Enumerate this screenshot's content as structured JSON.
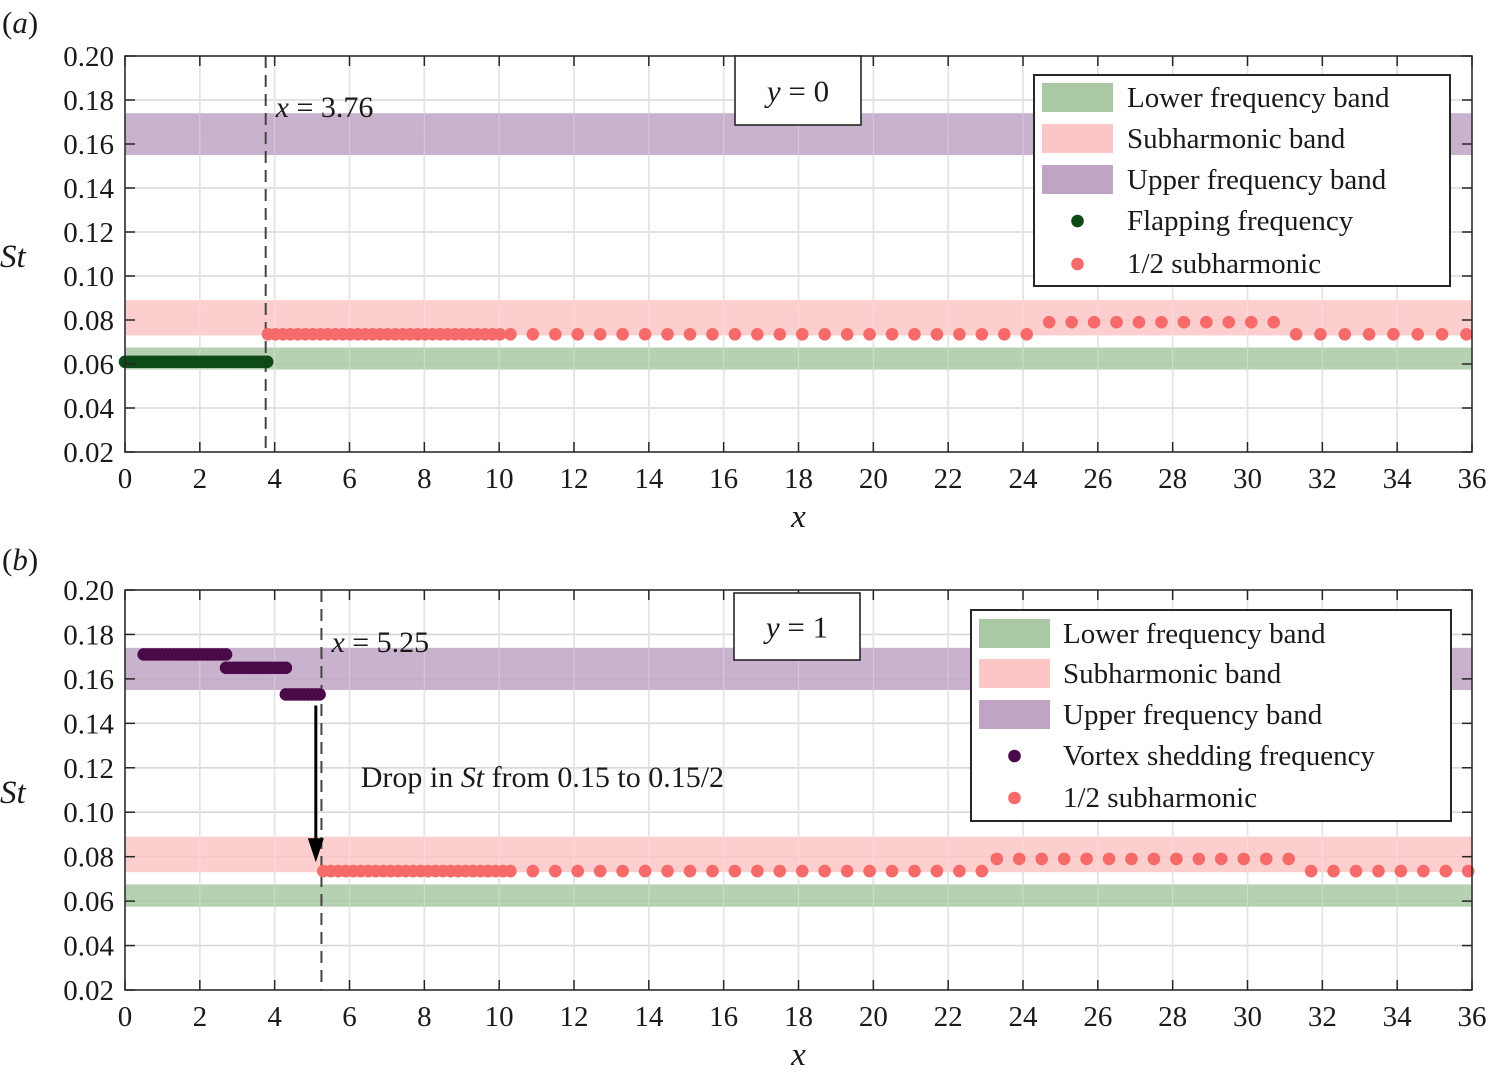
{
  "colors": {
    "lower_band": "#a9c8a4",
    "subharmonic_band": "#fdc6c6",
    "upper_band": "#bfa4c4",
    "flapping_dot": "#0d4a16",
    "subharmonic_dot": "#f76a6a",
    "vortex_dot": "#4a0a4a",
    "grid": "#d8d8d8"
  },
  "chart_data": [
    {
      "type": "scatter",
      "panel_label": "(a)",
      "annotation_box": "y = 0",
      "xlabel": "x",
      "ylabel": "St",
      "xlim": [
        0,
        36
      ],
      "ylim": [
        0.02,
        0.2
      ],
      "xticks": [
        0,
        2,
        4,
        6,
        8,
        10,
        12,
        14,
        16,
        18,
        20,
        22,
        24,
        26,
        28,
        30,
        32,
        34,
        36
      ],
      "yticks": [
        "0.02",
        "0.04",
        "0.06",
        "0.08",
        "0.10",
        "0.12",
        "0.14",
        "0.16",
        "0.18",
        "0.20"
      ],
      "grid": true,
      "legend_position": "top-right",
      "vline": {
        "x": 3.76,
        "label": "x = 3.76"
      },
      "bands": [
        {
          "name": "Lower frequency band",
          "ymin": 0.0575,
          "ymax": 0.0675,
          "color": "lower_band"
        },
        {
          "name": "Subharmonic band",
          "ymin": 0.073,
          "ymax": 0.089,
          "color": "subharmonic_band"
        },
        {
          "name": "Upper frequency band",
          "ymin": 0.155,
          "ymax": 0.174,
          "color": "upper_band"
        }
      ],
      "series": [
        {
          "name": "Flapping frequency",
          "color": "flapping_dot",
          "segments": [
            {
              "x0": 0.0,
              "x1": 3.76,
              "dx": 0.1,
              "y": 0.061
            }
          ]
        },
        {
          "name": "1/2 subharmonic",
          "color": "subharmonic_dot",
          "segments": [
            {
              "x0": 3.82,
              "x1": 10.0,
              "dx": 0.2,
              "y": 0.0735
            },
            {
              "x0": 10.3,
              "x1": 24.2,
              "dx": 0.6,
              "y": 0.0735
            },
            {
              "x0": 24.7,
              "x1": 30.8,
              "dx": 0.6,
              "y": 0.079
            },
            {
              "x0": 31.3,
              "x1": 35.9,
              "dx": 0.65,
              "y": 0.0735
            }
          ]
        }
      ]
    },
    {
      "type": "scatter",
      "panel_label": "(b)",
      "annotation_box": "y = 1",
      "xlabel": "x",
      "ylabel": "St",
      "xlim": [
        0,
        36
      ],
      "ylim": [
        0.02,
        0.2
      ],
      "xticks": [
        0,
        2,
        4,
        6,
        8,
        10,
        12,
        14,
        16,
        18,
        20,
        22,
        24,
        26,
        28,
        30,
        32,
        34,
        36
      ],
      "yticks": [
        "0.02",
        "0.04",
        "0.06",
        "0.08",
        "0.10",
        "0.12",
        "0.14",
        "0.16",
        "0.18",
        "0.20"
      ],
      "grid": true,
      "legend_position": "top-right",
      "vline": {
        "x": 5.25,
        "label": "x = 5.25"
      },
      "arrow": {
        "x": 5.1,
        "y_from": 0.148,
        "y_to": 0.0775
      },
      "drop_text": {
        "prefix": "Drop in ",
        "symbol": "St",
        "suffix": " from 0.15 to 0.15/2",
        "x": 6.3,
        "y": 0.1113
      },
      "bands": [
        {
          "name": "Lower frequency band",
          "ymin": 0.0575,
          "ymax": 0.0675,
          "color": "lower_band"
        },
        {
          "name": "Subharmonic band",
          "ymin": 0.073,
          "ymax": 0.089,
          "color": "subharmonic_band"
        },
        {
          "name": "Upper frequency band",
          "ymin": 0.155,
          "ymax": 0.174,
          "color": "upper_band"
        }
      ],
      "series": [
        {
          "name": "Vortex shedding frequency",
          "color": "vortex_dot",
          "segments": [
            {
              "x0": 0.5,
              "x1": 2.7,
              "dx": 0.1,
              "y": 0.171
            },
            {
              "x0": 2.7,
              "x1": 4.3,
              "dx": 0.1,
              "y": 0.165
            },
            {
              "x0": 4.3,
              "x1": 5.2,
              "dx": 0.1,
              "y": 0.153
            }
          ]
        },
        {
          "name": "1/2 subharmonic",
          "color": "subharmonic_dot",
          "segments": [
            {
              "x0": 5.3,
              "x1": 10.0,
              "dx": 0.2,
              "y": 0.0735
            },
            {
              "x0": 10.3,
              "x1": 22.8,
              "dx": 0.6,
              "y": 0.0735
            },
            {
              "x0": 23.3,
              "x1": 31.1,
              "dx": 0.6,
              "y": 0.079
            },
            {
              "x0": 31.7,
              "x1": 35.9,
              "dx": 0.6,
              "y": 0.0735
            }
          ]
        }
      ]
    }
  ]
}
